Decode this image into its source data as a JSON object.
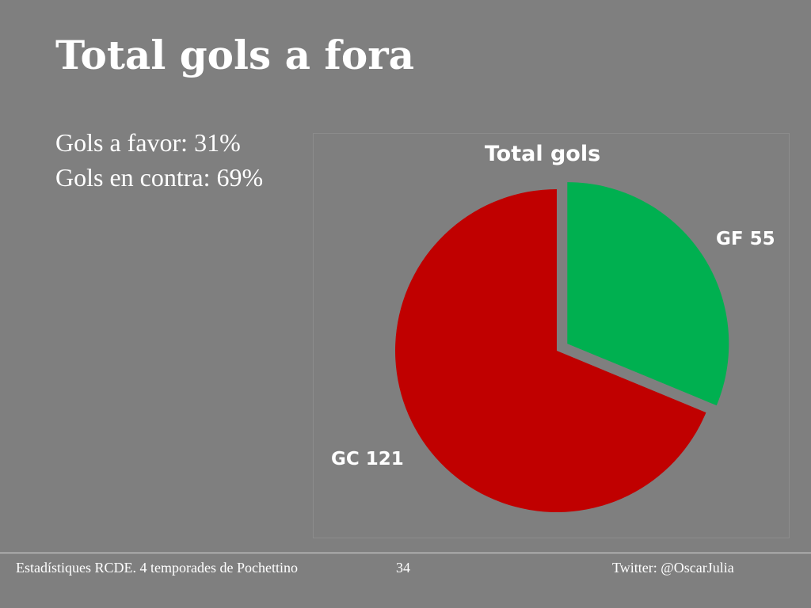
{
  "slide": {
    "title": "Total gols a fora",
    "stats": [
      "Gols a favor: 31%",
      "Gols en contra: 69%"
    ]
  },
  "chart_data": {
    "type": "pie",
    "title": "Total gols",
    "slices": [
      {
        "label": "GF 55",
        "category": "GF",
        "value": 55,
        "color": "#00b050",
        "exploded": true
      },
      {
        "label": "GC 121",
        "category": "GC",
        "value": 121,
        "color": "#c00000",
        "exploded": false
      }
    ],
    "start_angle": "12 o'clock",
    "direction": "clockwise",
    "label_text_color": "#ffffff"
  },
  "footer": {
    "left": "Estadístiques RCDE. 4 temporades de Pochettino",
    "page_number": "34",
    "right": "Twitter: @OscarJulia"
  },
  "colors": {
    "background": "#7f7f7f",
    "text": "#ffffff",
    "footer_rule": "#d9d9d9"
  }
}
